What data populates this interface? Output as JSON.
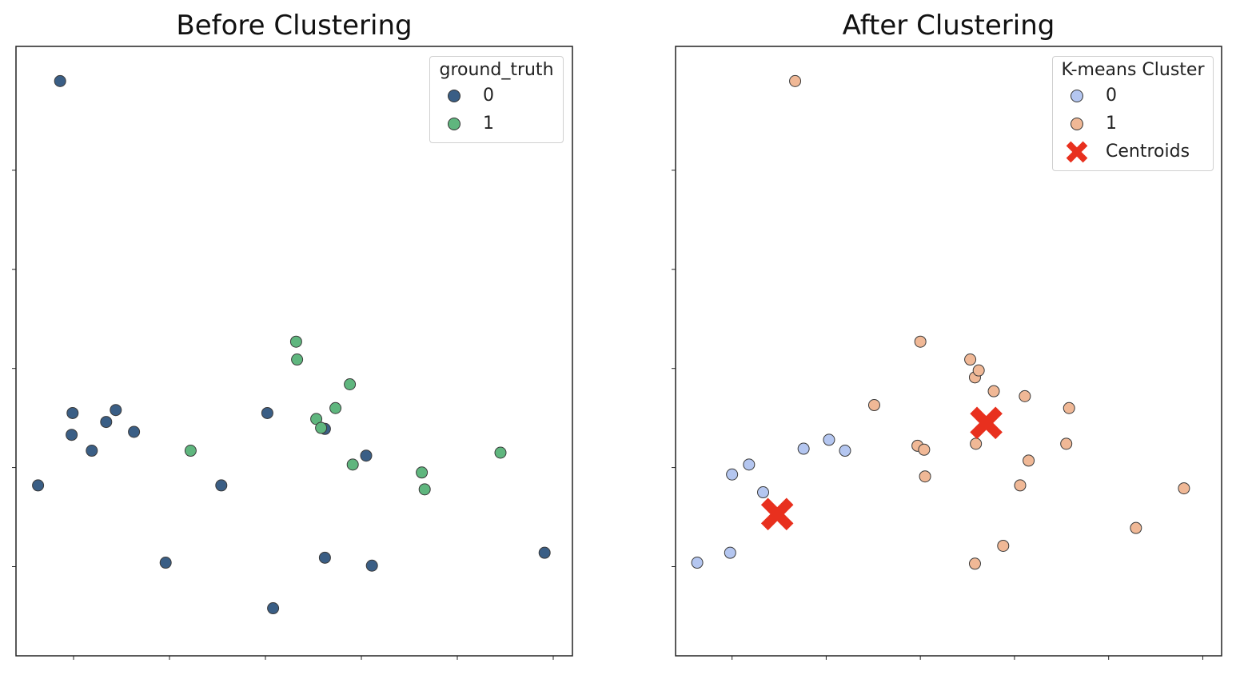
{
  "colors": {
    "ground_truth_0": "#3a5e85",
    "ground_truth_1": "#5fb67e",
    "kmeans_0": "#b4c6f0",
    "kmeans_1": "#f0b896",
    "centroid": "#e8301e",
    "frame": "#222222"
  },
  "chart_data": [
    {
      "type": "scatter",
      "title": "Before Clustering",
      "xlabel": "",
      "ylabel": "",
      "xlim": [
        -0.6,
        5.2
      ],
      "ylim": [
        -2.9,
        3.25
      ],
      "xticks": [
        0,
        1,
        2,
        3,
        4,
        5
      ],
      "yticks": [
        -2,
        -1,
        0,
        1,
        2
      ],
      "tick_labels_visible": false,
      "grid": false,
      "legend": {
        "title": "ground_truth",
        "placement": "upper right"
      },
      "series": [
        {
          "name": "0",
          "color_key": "ground_truth_0",
          "x": [
            -0.14,
            0.44,
            -0.37,
            -0.02,
            -0.01,
            0.19,
            0.34,
            0.63,
            0.96,
            1.54,
            2.02,
            2.08,
            2.62,
            2.62,
            3.11,
            3.05,
            4.91
          ],
          "y": [
            2.9,
            -0.42,
            -1.18,
            -0.67,
            -0.45,
            -0.83,
            -0.54,
            -0.64,
            -1.96,
            -1.18,
            -0.45,
            -2.42,
            -1.91,
            -0.61,
            -1.99,
            -0.88,
            -1.86
          ]
        },
        {
          "name": "1",
          "color_key": "ground_truth_1",
          "x": [
            2.32,
            2.33,
            2.88,
            2.73,
            2.53,
            2.58,
            2.91,
            3.66,
            3.63,
            4.45,
            1.22
          ],
          "y": [
            0.27,
            0.09,
            -0.16,
            -0.4,
            -0.51,
            -0.6,
            -0.97,
            -1.22,
            -1.05,
            -0.85,
            -0.83
          ]
        }
      ]
    },
    {
      "type": "scatter",
      "title": "After Clustering",
      "xlabel": "",
      "ylabel": "",
      "xlim": [
        -0.6,
        5.2
      ],
      "ylim": [
        -2.9,
        3.25
      ],
      "xticks": [
        0,
        1,
        2,
        3,
        4,
        5
      ],
      "yticks": [
        -2,
        -1,
        0,
        1,
        2
      ],
      "tick_labels_visible": false,
      "grid": false,
      "legend": {
        "title": "K-means Cluster",
        "placement": "upper right"
      },
      "series": [
        {
          "name": "0",
          "color_key": "kmeans_0",
          "marker": "circle",
          "x": [
            -0.37,
            -0.02,
            0.0,
            0.18,
            0.33,
            0.76,
            1.03,
            1.2
          ],
          "y": [
            -1.96,
            -1.86,
            -1.07,
            -0.97,
            -1.25,
            -0.81,
            -0.72,
            -0.83
          ]
        },
        {
          "name": "1",
          "color_key": "kmeans_1",
          "marker": "circle",
          "x": [
            0.67,
            2.0,
            1.51,
            2.53,
            2.58,
            2.62,
            2.78,
            3.11,
            3.58,
            3.15,
            1.97,
            2.05,
            2.04,
            2.59,
            3.55,
            4.29,
            2.58,
            3.06,
            4.8,
            2.88
          ],
          "y": [
            2.9,
            0.27,
            -0.37,
            0.09,
            -0.09,
            -0.02,
            -0.23,
            -0.28,
            -0.4,
            -0.93,
            -0.78,
            -1.09,
            -0.82,
            -0.76,
            -0.76,
            -1.61,
            -1.97,
            -1.18,
            -1.21,
            -1.79
          ]
        },
        {
          "name": "Centroids",
          "color_key": "centroid",
          "marker": "x",
          "x": [
            0.48,
            2.7
          ],
          "y": [
            -1.47,
            -0.55
          ]
        }
      ]
    }
  ]
}
